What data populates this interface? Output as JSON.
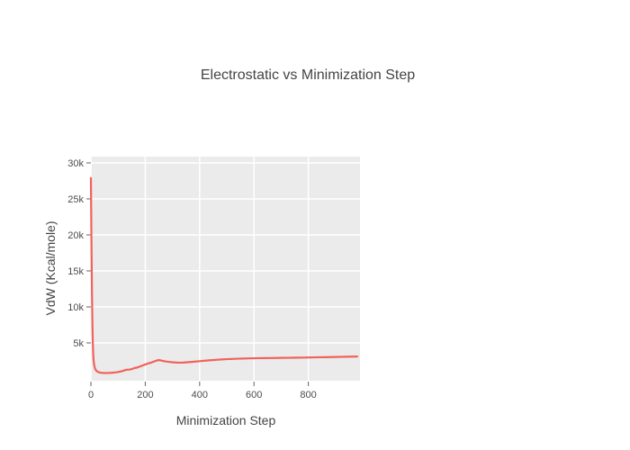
{
  "chart_data": {
    "type": "line",
    "title": "Electrostatic vs Minimization Step",
    "xlabel": "Minimization Step",
    "ylabel": "VdW (Kcal/mole)",
    "legend": "none",
    "grid": true,
    "xlim": [
      0,
      990
    ],
    "ylim": [
      -250,
      30875
    ],
    "x_ticks": [
      {
        "value": 0,
        "label": "0"
      },
      {
        "value": 200,
        "label": "200"
      },
      {
        "value": 400,
        "label": "400"
      },
      {
        "value": 600,
        "label": "600"
      },
      {
        "value": 800,
        "label": "800"
      }
    ],
    "y_ticks": [
      {
        "value": 5000,
        "label": "5k"
      },
      {
        "value": 10000,
        "label": "10k"
      },
      {
        "value": 15000,
        "label": "15k"
      },
      {
        "value": 20000,
        "label": "20k"
      },
      {
        "value": 25000,
        "label": "25k"
      },
      {
        "value": 30000,
        "label": "30k"
      }
    ],
    "colors": {
      "line": "#f1625c",
      "plot_bg": "#ebebeb",
      "grid": "#ffffff",
      "tick_mark": "#666666",
      "tick_label": "#4c4c4c",
      "axis_title": "#444444",
      "title": "#444444"
    },
    "series": [
      {
        "name": "VdW",
        "x": [
          0,
          1,
          2,
          3,
          4,
          5,
          6,
          7,
          8,
          9,
          10,
          12,
          14,
          16,
          18,
          20,
          25,
          30,
          35,
          40,
          45,
          50,
          55,
          60,
          65,
          70,
          75,
          80,
          85,
          90,
          95,
          100,
          105,
          110,
          115,
          120,
          125,
          130,
          133,
          136,
          140,
          145,
          150,
          155,
          160,
          165,
          168,
          172,
          176,
          180,
          185,
          190,
          195,
          200,
          205,
          210,
          215,
          218,
          222,
          226,
          230,
          235,
          240,
          245,
          250,
          255,
          260,
          265,
          270,
          275,
          280,
          290,
          300,
          310,
          320,
          330,
          340,
          350,
          365,
          380,
          400,
          420,
          440,
          460,
          480,
          500,
          520,
          540,
          560,
          580,
          600,
          620,
          640,
          660,
          680,
          700,
          720,
          740,
          760,
          780,
          800,
          820,
          840,
          860,
          880,
          900,
          920,
          940,
          960,
          980
        ],
        "y": [
          27900,
          23500,
          19200,
          15200,
          11800,
          9000,
          6800,
          5100,
          3900,
          3100,
          2550,
          1950,
          1600,
          1380,
          1230,
          1120,
          980,
          905,
          865,
          840,
          825,
          818,
          815,
          818,
          825,
          835,
          848,
          862,
          880,
          900,
          925,
          955,
          990,
          1030,
          1080,
          1140,
          1210,
          1260,
          1280,
          1275,
          1290,
          1320,
          1370,
          1430,
          1500,
          1560,
          1550,
          1600,
          1660,
          1720,
          1790,
          1860,
          1930,
          2000,
          2070,
          2140,
          2210,
          2200,
          2270,
          2330,
          2390,
          2450,
          2520,
          2580,
          2610,
          2590,
          2540,
          2500,
          2460,
          2430,
          2400,
          2350,
          2310,
          2280,
          2260,
          2255,
          2270,
          2295,
          2340,
          2390,
          2460,
          2530,
          2590,
          2650,
          2700,
          2740,
          2775,
          2805,
          2830,
          2850,
          2865,
          2880,
          2890,
          2900,
          2910,
          2920,
          2930,
          2940,
          2950,
          2960,
          2975,
          2990,
          3005,
          3020,
          3035,
          3050,
          3065,
          3080,
          3095,
          3110
        ]
      }
    ]
  }
}
